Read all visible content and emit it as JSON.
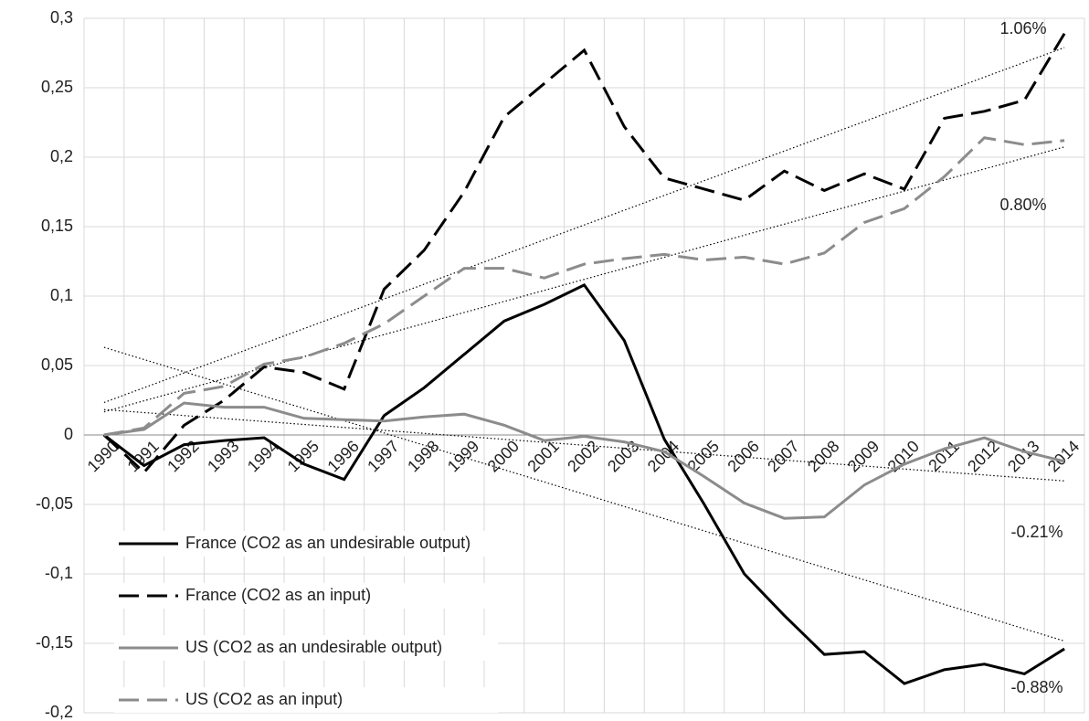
{
  "chart_data": {
    "type": "line",
    "categories": [
      "1990",
      "1991",
      "1992",
      "1993",
      "1994",
      "1995",
      "1996",
      "1997",
      "1998",
      "1999",
      "2000",
      "2001",
      "2002",
      "2003",
      "2004",
      "2005",
      "2006",
      "2007",
      "2008",
      "2009",
      "2010",
      "2011",
      "2012",
      "2013",
      "2014"
    ],
    "ylim": [
      -0.2,
      0.3
    ],
    "yticks": [
      {
        "value": -0.2,
        "label": "-0,2"
      },
      {
        "value": -0.15,
        "label": "-0,15"
      },
      {
        "value": -0.1,
        "label": "-0,1"
      },
      {
        "value": -0.05,
        "label": "-0,05"
      },
      0,
      {
        "value": 0.05,
        "label": "0,05"
      },
      {
        "value": 0.1,
        "label": "0,1"
      },
      {
        "value": 0.15,
        "label": "0,15"
      },
      {
        "value": 0.2,
        "label": "0,2"
      },
      {
        "value": 0.25,
        "label": "0,25"
      },
      {
        "value": 0.3,
        "label": "0,3"
      }
    ],
    "grid": true,
    "legend": "lower left",
    "trendlines": true,
    "series": [
      {
        "name": "France (CO2 as an undesirable output)",
        "color": "#000000",
        "style": "solid",
        "trend_label": "-0.88%",
        "values": [
          0,
          -0.022,
          -0.007,
          -0.004,
          -0.002,
          -0.021,
          -0.032,
          0.014,
          0.034,
          0.058,
          0.082,
          0.094,
          0.108,
          0.068,
          -0.003,
          -0.05,
          -0.1,
          -0.13,
          -0.158,
          -0.156,
          -0.179,
          -0.169,
          -0.165,
          -0.172,
          -0.154
        ]
      },
      {
        "name": "France (CO2 as an input)",
        "color": "#000000",
        "style": "dashed",
        "trend_label": "1.06%",
        "values": [
          0,
          -0.027,
          0.007,
          0.025,
          0.049,
          0.045,
          0.033,
          0.105,
          0.133,
          0.175,
          0.229,
          0.253,
          0.277,
          0.222,
          0.185,
          0.177,
          0.169,
          0.19,
          0.176,
          0.188,
          0.177,
          0.228,
          0.233,
          0.241,
          0.289
        ]
      },
      {
        "name": "US (CO2 as an undesirable output)",
        "color": "#8c8c8c",
        "style": "solid",
        "trend_label": "-0.21%",
        "values": [
          0,
          0.004,
          0.023,
          0.02,
          0.02,
          0.012,
          0.011,
          0.01,
          0.013,
          0.015,
          0.007,
          -0.004,
          -0.001,
          -0.005,
          -0.012,
          -0.03,
          -0.049,
          -0.06,
          -0.059,
          -0.036,
          -0.021,
          -0.01,
          -0.002,
          -0.012,
          -0.019
        ]
      },
      {
        "name": "US (CO2 as an input)",
        "color": "#8c8c8c",
        "style": "dashed",
        "trend_label": "0.80%",
        "values": [
          0,
          0.005,
          0.03,
          0.035,
          0.051,
          0.056,
          0.066,
          0.08,
          0.1,
          0.12,
          0.12,
          0.113,
          0.123,
          0.127,
          0.13,
          0.126,
          0.128,
          0.123,
          0.131,
          0.153,
          0.163,
          0.186,
          0.214,
          0.209,
          0.212
        ]
      }
    ]
  }
}
